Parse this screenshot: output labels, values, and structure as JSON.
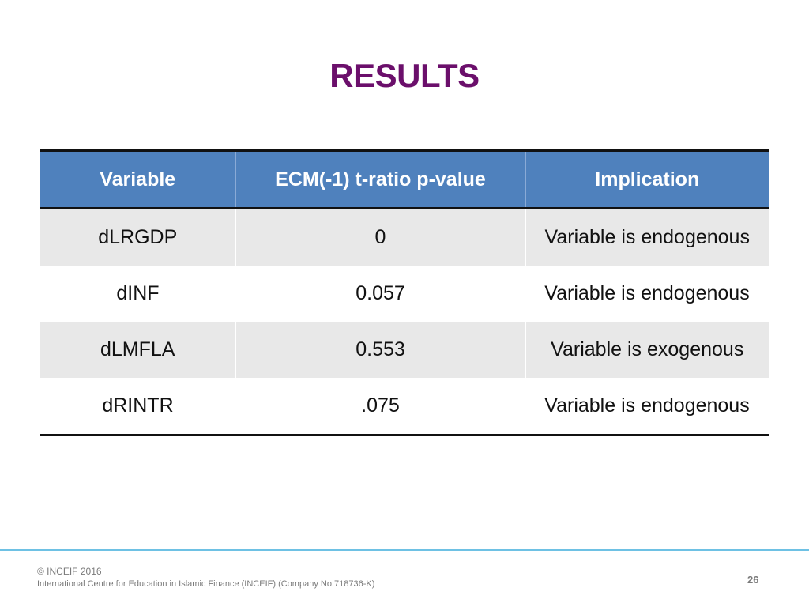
{
  "slide": {
    "title": "RESULTS"
  },
  "table": {
    "headers": [
      "Variable",
      "ECM(-1) t-ratio p-value",
      "Implication"
    ],
    "rows": [
      {
        "variable": "dLRGDP",
        "p_value": "0",
        "implication": "Variable is endogenous"
      },
      {
        "variable": "dINF",
        "p_value": "0.057",
        "implication": "Variable is endogenous"
      },
      {
        "variable": "dLMFLA",
        "p_value": "0.553",
        "implication": "Variable is exogenous"
      },
      {
        "variable": "dRINTR",
        "p_value": ".075",
        "implication": "Variable is endogenous"
      }
    ]
  },
  "footer": {
    "copyright": "© INCEIF 2016",
    "company": "International Centre for Education in Islamic Finance (INCEIF) (Company No.718736-K)",
    "page_number": "26"
  },
  "colors": {
    "title": "#6b0f6b",
    "header_bg": "#4f81bd",
    "shaded_row_bg": "#e8e8e8",
    "footer_rule": "#6ec1e4"
  }
}
